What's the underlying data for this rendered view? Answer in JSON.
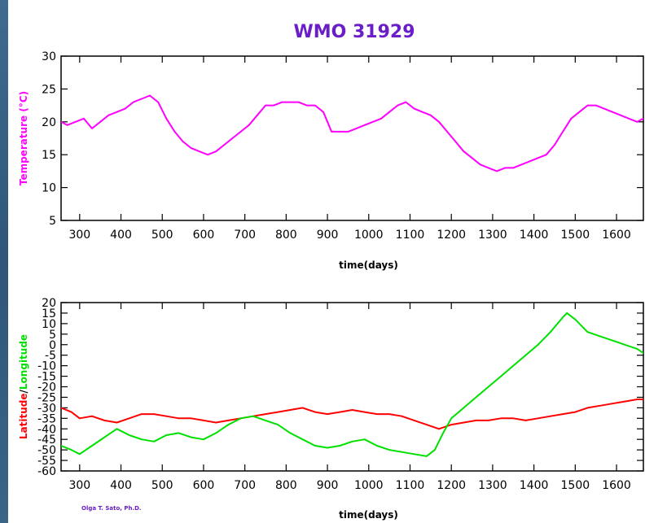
{
  "title": "WMO 31929",
  "credit": "Olga T. Sato, Ph.D.",
  "colors": {
    "title": "#6a1ec8",
    "temperature": "#ff00ff",
    "latitude": "#ff0000",
    "longitude": "#00e000",
    "credit": "#6a1ec8"
  },
  "chart_data": [
    {
      "type": "line",
      "xlabel": "time(days)",
      "ylabel": "Temperature (°C)",
      "xlim": [
        255,
        1665
      ],
      "ylim": [
        5,
        30
      ],
      "xticks": [
        300,
        400,
        500,
        600,
        700,
        800,
        900,
        1000,
        1100,
        1200,
        1300,
        1400,
        1500,
        1600
      ],
      "yticks": [
        5,
        10,
        15,
        20,
        25,
        30
      ],
      "grid": false,
      "series": [
        {
          "color": "#ff00ff",
          "x": [
            255,
            270,
            290,
            310,
            330,
            350,
            370,
            390,
            410,
            430,
            450,
            470,
            490,
            510,
            530,
            550,
            570,
            590,
            610,
            630,
            650,
            670,
            690,
            710,
            730,
            750,
            770,
            790,
            810,
            830,
            850,
            870,
            890,
            900,
            910,
            930,
            950,
            970,
            990,
            1010,
            1030,
            1050,
            1070,
            1090,
            1110,
            1130,
            1150,
            1170,
            1190,
            1210,
            1230,
            1250,
            1270,
            1290,
            1310,
            1330,
            1350,
            1370,
            1390,
            1410,
            1430,
            1450,
            1470,
            1490,
            1510,
            1530,
            1550,
            1570,
            1590,
            1610,
            1630,
            1650,
            1665
          ],
          "y": [
            20.0,
            19.5,
            20.0,
            20.5,
            19.0,
            20.0,
            21.0,
            21.5,
            22.0,
            23.0,
            23.5,
            24.0,
            23.0,
            20.5,
            18.5,
            17.0,
            16.0,
            15.5,
            15.0,
            15.5,
            16.5,
            17.5,
            18.5,
            19.5,
            21.0,
            22.5,
            22.5,
            23.0,
            23.0,
            23.0,
            22.5,
            22.5,
            21.5,
            20.0,
            18.5,
            18.5,
            18.5,
            19.0,
            19.5,
            20.0,
            20.5,
            21.5,
            22.5,
            23.0,
            22.0,
            21.5,
            21.0,
            20.0,
            18.5,
            17.0,
            15.5,
            14.5,
            13.5,
            13.0,
            12.5,
            13.0,
            13.0,
            13.5,
            14.0,
            14.5,
            15.0,
            16.5,
            18.5,
            20.5,
            21.5,
            22.5,
            22.5,
            22.0,
            21.5,
            21.0,
            20.5,
            20.0,
            20.5
          ]
        }
      ]
    },
    {
      "type": "line",
      "xlabel": "time(days)",
      "ylabel": "Latitude/Longitude",
      "xlim": [
        255,
        1665
      ],
      "ylim": [
        -60,
        20
      ],
      "xticks": [
        300,
        400,
        500,
        600,
        700,
        800,
        900,
        1000,
        1100,
        1200,
        1300,
        1400,
        1500,
        1600
      ],
      "yticks": [
        -60,
        -55,
        -50,
        -45,
        -40,
        -35,
        -30,
        -25,
        -20,
        -15,
        -10,
        -5,
        0,
        5,
        10,
        15,
        20
      ],
      "grid": false,
      "series": [
        {
          "name": "Latitude",
          "color": "#ff0000",
          "x": [
            255,
            280,
            300,
            330,
            360,
            390,
            420,
            450,
            480,
            510,
            540,
            570,
            600,
            630,
            660,
            690,
            720,
            750,
            780,
            810,
            840,
            870,
            900,
            930,
            960,
            990,
            1020,
            1050,
            1080,
            1110,
            1140,
            1170,
            1200,
            1230,
            1260,
            1290,
            1320,
            1350,
            1380,
            1410,
            1440,
            1470,
            1500,
            1530,
            1560,
            1590,
            1620,
            1650,
            1665
          ],
          "y": [
            -30,
            -32,
            -35,
            -34,
            -36,
            -37,
            -35,
            -33,
            -33,
            -34,
            -35,
            -35,
            -36,
            -37,
            -36,
            -35,
            -34,
            -33,
            -32,
            -31,
            -30,
            -32,
            -33,
            -32,
            -31,
            -32,
            -33,
            -33,
            -34,
            -36,
            -38,
            -40,
            -38,
            -37,
            -36,
            -36,
            -35,
            -35,
            -36,
            -35,
            -34,
            -33,
            -32,
            -30,
            -29,
            -28,
            -27,
            -26,
            -26
          ]
        },
        {
          "name": "Longitude",
          "color": "#00e000",
          "x": [
            255,
            280,
            300,
            330,
            360,
            390,
            420,
            450,
            480,
            510,
            540,
            570,
            600,
            630,
            660,
            690,
            720,
            750,
            780,
            810,
            840,
            870,
            900,
            930,
            960,
            990,
            1020,
            1050,
            1080,
            1110,
            1140,
            1160,
            1180,
            1200,
            1230,
            1260,
            1290,
            1320,
            1350,
            1380,
            1410,
            1440,
            1470,
            1480,
            1500,
            1530,
            1560,
            1590,
            1620,
            1650,
            1665
          ],
          "y": [
            -48,
            -50,
            -52,
            -48,
            -44,
            -40,
            -43,
            -45,
            -46,
            -43,
            -42,
            -44,
            -45,
            -42,
            -38,
            -35,
            -34,
            -36,
            -38,
            -42,
            -45,
            -48,
            -49,
            -48,
            -46,
            -45,
            -48,
            -50,
            -51,
            -52,
            -53,
            -50,
            -42,
            -35,
            -30,
            -25,
            -20,
            -15,
            -10,
            -5,
            0,
            6,
            13,
            15,
            12,
            6,
            4,
            2,
            0,
            -2,
            -4
          ]
        }
      ]
    }
  ]
}
